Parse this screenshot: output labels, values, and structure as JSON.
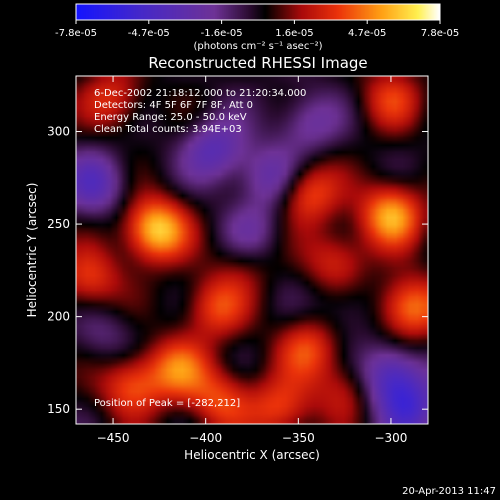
{
  "chart_data": {
    "type": "heatmap",
    "title": "Reconstructed RHESSI Image",
    "xlabel": "Heliocentric X (arcsec)",
    "ylabel": "Heliocentric Y (arcsec)",
    "xlim": [
      -470,
      -280
    ],
    "ylim": [
      142,
      330
    ],
    "x_ticks": [
      -450,
      -400,
      -350,
      -300
    ],
    "y_ticks": [
      150,
      200,
      250,
      300
    ],
    "colorbar": {
      "ticks": [
        "-7.8e-05",
        "-4.7e-05",
        "-1.6e-05",
        "1.6e-05",
        "4.7e-05",
        "7.8e-05"
      ],
      "range": [
        -7.8e-05,
        7.8e-05
      ],
      "unit_label": "(photons cm⁻² s⁻¹ asec⁻²)"
    },
    "annotations": [
      "6-Dec-2002 21:18:12.000 to 21:20:34.000",
      "Detectors: 4F 5F 6F 7F 8F, Att 0",
      "Energy Range: 25.0 - 50.0 keV",
      "Clean     Total counts: 3.94E+03"
    ],
    "peak_label": "Position of Peak = [-282,212]",
    "blobs": [
      {
        "x": -427,
        "y": 247,
        "v": 6.5e-05
      },
      {
        "x": -415,
        "y": 172,
        "v": 4e-05
      },
      {
        "x": -440,
        "y": 163,
        "v": 4e-05
      },
      {
        "x": -395,
        "y": 205,
        "v": 3.5e-05
      },
      {
        "x": -392,
        "y": 155,
        "v": 3.5e-05
      },
      {
        "x": -345,
        "y": 183,
        "v": 3.5e-05
      },
      {
        "x": -300,
        "y": 255,
        "v": 5.5e-05
      },
      {
        "x": -290,
        "y": 205,
        "v": 5e-05
      },
      {
        "x": -345,
        "y": 267,
        "v": 4e-05
      },
      {
        "x": -330,
        "y": 230,
        "v": 3e-05
      },
      {
        "x": -360,
        "y": 150,
        "v": 3.5e-05
      },
      {
        "x": -463,
        "y": 220,
        "v": 3.5e-05
      },
      {
        "x": -450,
        "y": 318,
        "v": 3e-05
      },
      {
        "x": -300,
        "y": 318,
        "v": 3e-05
      },
      {
        "x": -325,
        "y": 160,
        "v": 2.5e-05
      },
      {
        "x": -460,
        "y": 272,
        "v": -3.5e-05
      },
      {
        "x": -395,
        "y": 290,
        "v": -3.5e-05
      },
      {
        "x": -365,
        "y": 275,
        "v": -3e-05
      },
      {
        "x": -300,
        "y": 168,
        "v": -4.5e-05
      },
      {
        "x": -290,
        "y": 150,
        "v": -4e-05
      },
      {
        "x": -345,
        "y": 305,
        "v": -2.5e-05
      },
      {
        "x": -455,
        "y": 190,
        "v": -1.5e-05
      },
      {
        "x": -375,
        "y": 245,
        "v": -2e-05
      },
      {
        "x": -325,
        "y": 205,
        "v": -1.5e-05
      },
      {
        "x": -380,
        "y": 228,
        "v": 1.5e-05
      }
    ]
  },
  "footer": {
    "date": "20-Apr-2013 11:47"
  }
}
